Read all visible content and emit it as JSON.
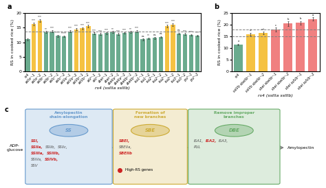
{
  "chart_data": [
    {
      "type": "bar",
      "title": "a",
      "categories": [
        "rs4",
        "ssIIaᶜʳ-1",
        "ssIIaᶜʳ-2",
        "ssIIbᶜʳ-1",
        "ssIIbᶜʳ-2",
        "ssIIcᶜʳ-1",
        "ssIIcᶜʳ-2",
        "ssIVaᶜʳ-1",
        "ssIVaᶜʳ-2",
        "ssIVbᶜʳ-1",
        "ssIVbᶜʳ-2",
        "ssVᶜʳ-1",
        "ssVᶜʳ-2",
        "sbeiᶜʳ-1",
        "sbeiᶜʳ-2",
        "sbeIIaᶜʳ-1",
        "sbeIIaᶜʳ-2",
        "sbeIIbᶜʳ-1",
        "sbeIIbᶜʳ-2",
        "isa1ᶜʳ-1",
        "isa1ᶜʳ-2",
        "isa2ᶜʳ-1",
        "isa2ᶜʳ-2",
        "isa2ᶜʳ-1",
        "isa2ᶜʳ-2",
        "isa3ᶜʳ-1",
        "isa3ᶜʳ-2",
        "pulᶜʳ-1",
        "pulᶜʳ-2"
      ],
      "values": [
        11.0,
        16.2,
        17.5,
        13.5,
        13.8,
        12.2,
        12.0,
        13.8,
        14.5,
        14.8,
        15.5,
        13.0,
        12.8,
        13.2,
        13.5,
        12.8,
        13.2,
        13.5,
        13.8,
        11.0,
        11.3,
        11.5,
        11.8,
        15.5,
        16.0,
        13.0,
        12.8,
        12.5,
        12.3
      ],
      "errors": [
        0.3,
        0.5,
        0.5,
        0.35,
        0.35,
        0.3,
        0.3,
        0.35,
        0.4,
        0.4,
        0.45,
        0.35,
        0.3,
        0.35,
        0.35,
        0.3,
        0.3,
        0.35,
        0.35,
        0.3,
        0.3,
        0.3,
        0.3,
        0.45,
        0.45,
        0.3,
        0.3,
        0.3,
        0.3
      ],
      "colors": [
        "#6aab8e",
        "#f5c242",
        "#f5c242",
        "#6aab8e",
        "#6aab8e",
        "#6aab8e",
        "#6aab8e",
        "#6aab8e",
        "#f5c242",
        "#f5c242",
        "#f5c242",
        "#6aab8e",
        "#6aab8e",
        "#6aab8e",
        "#6aab8e",
        "#6aab8e",
        "#6aab8e",
        "#6aab8e",
        "#6aab8e",
        "#6aab8e",
        "#6aab8e",
        "#6aab8e",
        "#6aab8e",
        "#f5c242",
        "#f5c242",
        "#6aab8e",
        "#6aab8e",
        "#6aab8e",
        "#6aab8e"
      ],
      "annotations": [
        null,
        "***",
        "***",
        "**",
        "***",
        "****",
        "****",
        "***",
        "***",
        "***",
        "***",
        "***",
        "***",
        "***",
        "**",
        "***",
        "***",
        "**",
        "***",
        "ns",
        "**",
        "ns",
        "ns",
        "***",
        "***",
        "ns",
        "***",
        "***",
        "***"
      ],
      "reference_lines": [
        13.8
      ],
      "xlabel": "rs4 (ssIIIa ssIIIb)",
      "ylabel": "RS in cooked rice (%)",
      "ylim": [
        0,
        20
      ],
      "yticks": [
        0,
        5,
        10,
        15,
        20
      ]
    },
    {
      "type": "bar",
      "title": "b",
      "categories": [
        "rs4",
        "ssIVb sbeIIbᶜʳ-1",
        "ssIVb sbeIIbᶜʳ-2",
        "sbei sbeIIbᶜʳ-1",
        "sbei sbeIIbᶜʳ-2",
        "sbei ssIVbᶜʳ-1",
        "sbei ssIVbᶜʳ-2"
      ],
      "values": [
        11.5,
        16.0,
        16.5,
        18.0,
        20.5,
        20.8,
        22.5
      ],
      "errors": [
        0.4,
        0.6,
        0.6,
        0.8,
        0.9,
        0.8,
        0.7
      ],
      "colors": [
        "#6aab8e",
        "#f5c242",
        "#f5c242",
        "#f08080",
        "#f08080",
        "#f08080",
        "#f08080"
      ],
      "annotations": [
        "e",
        "d",
        "cd",
        "c",
        "b",
        "b",
        "a"
      ],
      "reference_lines": [
        15.0,
        18.0
      ],
      "xlabel": "rs4 (ssIIIa ssIIIb)",
      "ylabel": "RS in cooked rice (%)",
      "ylim": [
        0,
        25
      ],
      "yticks": [
        0,
        5,
        10,
        15,
        20,
        25
      ]
    },
    {
      "type": "diagram",
      "title": "c",
      "start": "ADP-\nglucose",
      "end": "Amylopectin",
      "highlight_color": "#cc2222",
      "highlight_label": "High-RS genes",
      "boxes": [
        {
          "title": "Amylopectin\nchain-elongation",
          "label": "SS",
          "color": "#6699cc",
          "genes": [
            [
              {
                "name": "SSI,",
                "highlight": true
              }
            ],
            [
              {
                "name": "SSIIa,",
                "highlight": true
              },
              {
                "name": "SSIIb,",
                "highlight": false
              },
              {
                "name": "SSIIc,",
                "highlight": false
              }
            ],
            [
              {
                "name": "SSIIIa,",
                "highlight": true
              },
              {
                "name": "SSIIIb,",
                "highlight": true
              }
            ],
            [
              {
                "name": "SSIVa,",
                "highlight": false
              },
              {
                "name": "SSIVb,",
                "highlight": true
              }
            ],
            [
              {
                "name": "SSV",
                "highlight": false
              }
            ]
          ]
        },
        {
          "title": "Formation of\nnew branches",
          "label": "SBE",
          "color": "#ccaa33",
          "genes": [
            [
              {
                "name": "SBEI,",
                "highlight": true
              }
            ],
            [
              {
                "name": "SBEIIa,",
                "highlight": false
              }
            ],
            [
              {
                "name": "SBEIIb",
                "highlight": true
              }
            ]
          ]
        },
        {
          "title": "Remove improper\nbranches",
          "label": "DBE",
          "color": "#66aa66",
          "genes": [
            [
              {
                "name": "ISA1,",
                "highlight": false
              },
              {
                "name": "ISA2,",
                "highlight": true
              },
              {
                "name": "ISA3,",
                "highlight": false
              }
            ],
            [
              {
                "name": "PUL",
                "highlight": false
              }
            ]
          ]
        }
      ]
    }
  ]
}
